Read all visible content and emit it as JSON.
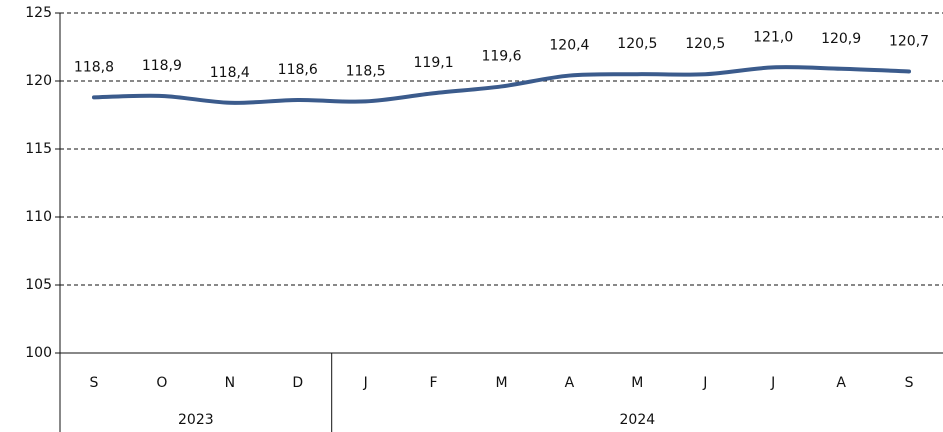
{
  "chart_data": {
    "type": "line",
    "categories": [
      "S",
      "O",
      "N",
      "D",
      "J",
      "F",
      "M",
      "A",
      "M",
      "J",
      "J",
      "A",
      "S"
    ],
    "groups": [
      {
        "label": "2023",
        "span": 4
      },
      {
        "label": "2024",
        "span": 9
      }
    ],
    "series": [
      {
        "color": "#3b5b8c",
        "values": [
          118.8,
          118.9,
          118.4,
          118.6,
          118.5,
          119.1,
          119.6,
          120.4,
          120.5,
          120.5,
          121.0,
          120.9,
          120.7
        ],
        "value_labels": [
          "118,8",
          "118,9",
          "118,4",
          "118,6",
          "118,5",
          "119,1",
          "119,6",
          "120,4",
          "120,5",
          "120,5",
          "121,0",
          "120,9",
          "120,7"
        ]
      }
    ],
    "ylim": [
      100,
      125
    ],
    "yticks": [
      100,
      105,
      110,
      115,
      120,
      125
    ],
    "grid": true
  }
}
